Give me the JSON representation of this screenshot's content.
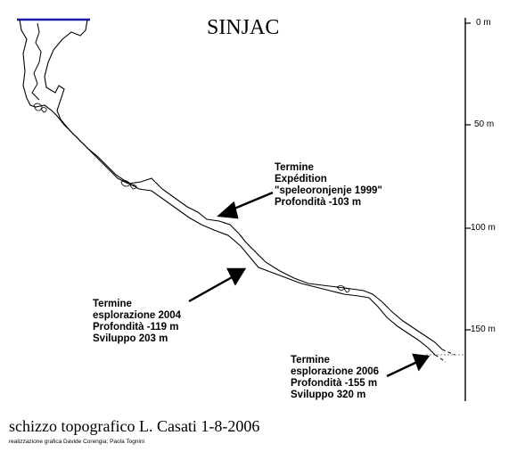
{
  "title": "SINJAC",
  "depth_scale": {
    "ticks": [
      {
        "label": "0 m",
        "depth": 0
      },
      {
        "label": "50 m",
        "depth": 50
      },
      {
        "label": "100 m",
        "depth": 100
      },
      {
        "label": "150 m",
        "depth": 150
      }
    ]
  },
  "annotations": [
    {
      "id": "exp1999",
      "lines": [
        "Termine",
        "Expédition",
        "\"speleoronjenje 1999\"",
        "Profondità -103 m"
      ]
    },
    {
      "id": "expl2004",
      "lines": [
        "Termine",
        "esplorazione 2004",
        "Profondità -119 m",
        "Sviluppo 203 m"
      ]
    },
    {
      "id": "expl2006",
      "lines": [
        "Termine",
        "esplorazione 2006",
        "Profondità -155 m",
        "Sviluppo 320 m"
      ]
    }
  ],
  "footer": {
    "sketch": "schizzo topografico L. Casati 1-8-2006",
    "credits": "realizzazione grafica Davide Corengia; Paola Tognini"
  },
  "colors": {
    "surface_line": "#1a1aa8",
    "ink": "#000000"
  }
}
